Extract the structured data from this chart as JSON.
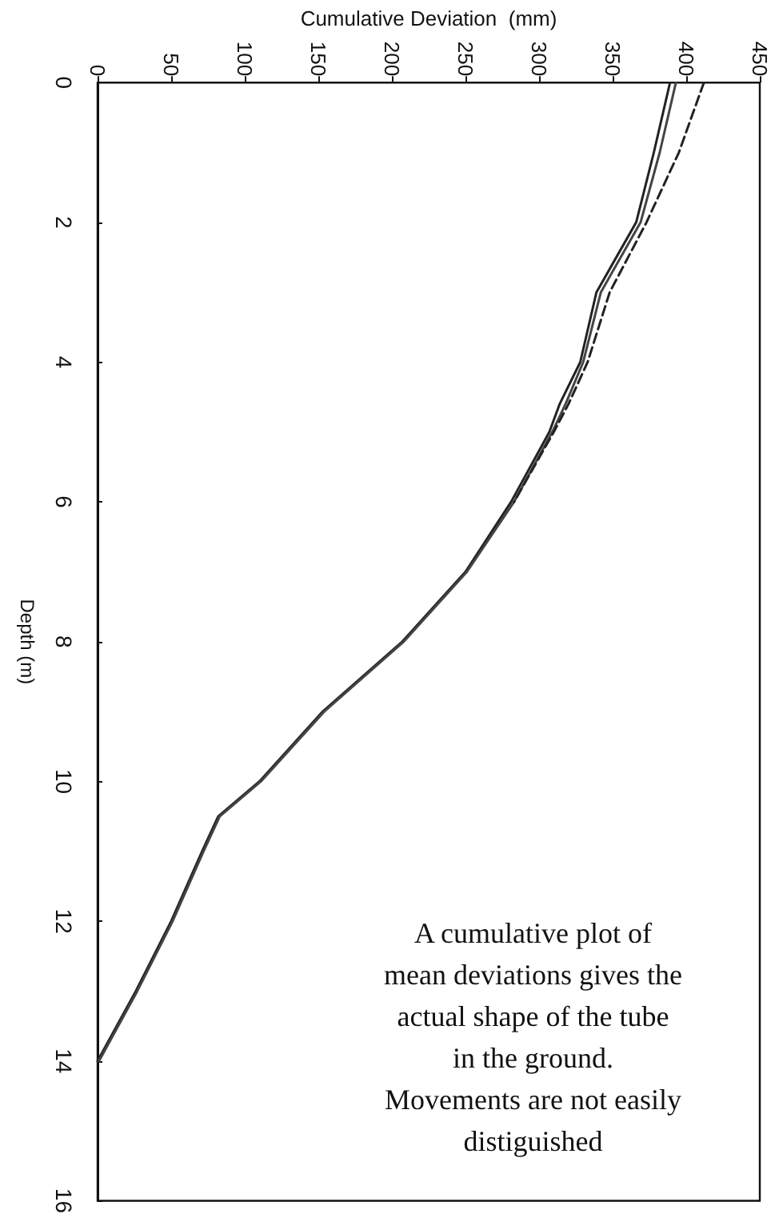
{
  "chart_data": {
    "type": "line",
    "xlabel": "Cumulative Deviation  (mm)",
    "ylabel": "Depth (m)",
    "xlim": [
      0,
      450
    ],
    "xticks": [
      0,
      50,
      100,
      150,
      200,
      250,
      300,
      350,
      400,
      450
    ],
    "ylim": [
      16,
      0
    ],
    "yticks": [
      0,
      2,
      4,
      6,
      8,
      10,
      12,
      14,
      16
    ],
    "series": [
      {
        "color": "#222222",
        "line_style": "solid",
        "x": [
          389,
          378,
          366,
          339,
          328,
          314,
          307,
          281,
          250,
          207,
          153,
          110,
          82,
          71,
          50,
          26,
          0
        ],
        "values": [
          0,
          1,
          2,
          3,
          4,
          4.6,
          5,
          6,
          7,
          8,
          9,
          10,
          10.5,
          11,
          12,
          13,
          14
        ]
      },
      {
        "color": "#444444",
        "line_style": "solid",
        "x": [
          393,
          382,
          369,
          342,
          330,
          318,
          309,
          283,
          251,
          208,
          154,
          111,
          83,
          72,
          51,
          27,
          1
        ],
        "values": [
          0,
          1,
          2,
          3,
          4,
          4.6,
          5,
          6,
          7,
          8,
          9,
          10,
          10.5,
          11,
          12,
          13,
          14
        ]
      },
      {
        "color": "#222222",
        "line_style": "dashed",
        "x": [
          412,
          395,
          373,
          348,
          333,
          320,
          310,
          283
        ],
        "values": [
          0,
          1,
          2,
          3,
          4,
          4.6,
          5,
          6
        ]
      }
    ],
    "annotations": [
      "A cumulative plot of\nmean deviations gives the\nactual shape of the tube\nin the ground.\nMovements are not easily\ndistiguished"
    ],
    "grid": false,
    "marker": "none"
  }
}
